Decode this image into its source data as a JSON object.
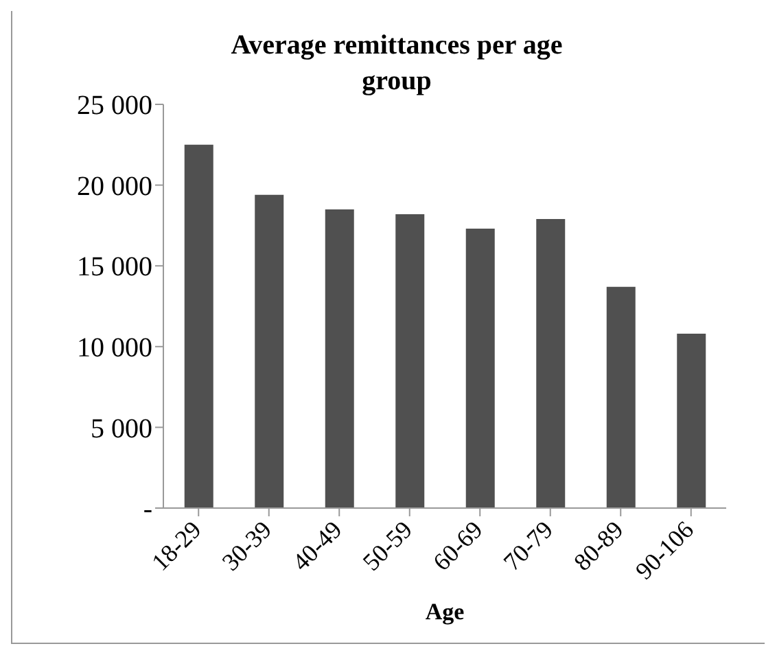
{
  "chart_data": {
    "type": "bar",
    "title": "Average remittances per age group",
    "xlabel": "Age",
    "categories": [
      "18-29",
      "30-39",
      "40-49",
      "50-59",
      "60-69",
      "70-79",
      "80-89",
      "90-106"
    ],
    "values": [
      22500,
      19400,
      18500,
      18200,
      17300,
      17900,
      13700,
      10800
    ],
    "color": "#505050",
    "ylim": [
      0,
      25000
    ],
    "yticks": [
      {
        "value": 0,
        "label": "-"
      },
      {
        "value": 5000,
        "label": "5 000"
      },
      {
        "value": 10000,
        "label": "10 000"
      },
      {
        "value": 15000,
        "label": "15 000"
      },
      {
        "value": 20000,
        "label": "20 000"
      },
      {
        "value": 25000,
        "label": "25 000"
      }
    ],
    "grid": false
  }
}
